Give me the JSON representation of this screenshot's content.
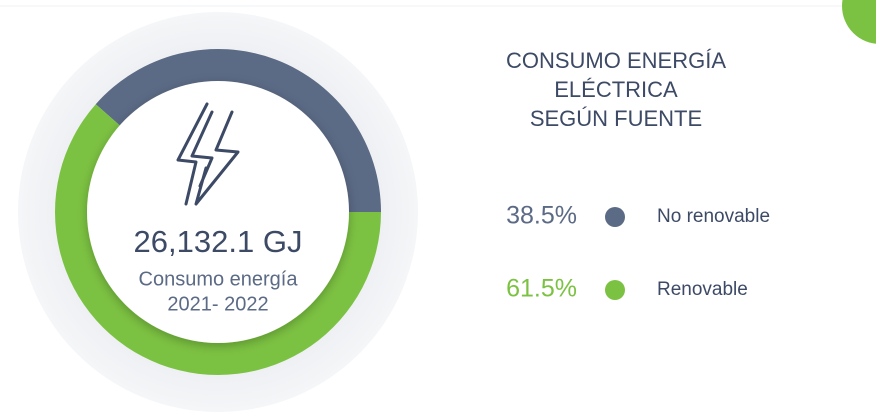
{
  "chart_data": {
    "type": "pie",
    "title": [
      "CONSUMO ENERGÍA",
      "ELÉCTRICA",
      "SEGÚN FUENTE"
    ],
    "center_value": "26,132.1 GJ",
    "center_label": [
      "Consumo energía",
      "2021- 2022"
    ],
    "categories": [
      "No renovable",
      "Renovable"
    ],
    "values": [
      38.5,
      61.5
    ],
    "value_labels": [
      "38.5%",
      "61.5%"
    ],
    "colors": [
      "#5b6a85",
      "#7cc242"
    ],
    "legend": "right"
  }
}
